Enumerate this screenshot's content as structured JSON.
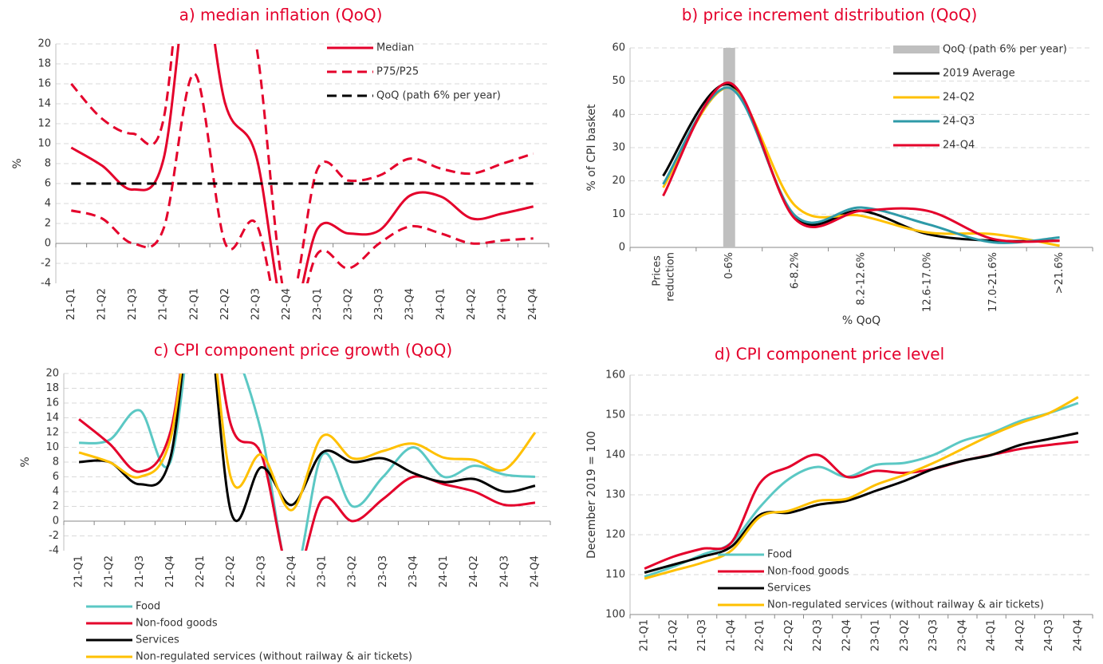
{
  "chart_data": [
    {
      "type": "line",
      "title": "a) median inflation (QoQ)",
      "ylabel": "%",
      "categories": [
        "21-Q1",
        "21-Q2",
        "21-Q3",
        "21-Q4",
        "22-Q1",
        "22-Q2",
        "22-Q3",
        "22-Q4",
        "23-Q1",
        "23-Q2",
        "23-Q3",
        "23-Q4",
        "24-Q1",
        "24-Q2",
        "24-Q3",
        "24-Q4"
      ],
      "ylim": [
        -4,
        20
      ],
      "yticks": [
        -4,
        -2,
        0,
        2,
        4,
        6,
        8,
        10,
        12,
        14,
        16,
        18,
        20
      ],
      "grid": true,
      "legend": "upper right",
      "series": [
        {
          "name": "Median",
          "color": "#e4002b",
          "dash": false,
          "values": [
            9.6,
            7.8,
            5.4,
            8.5,
            30,
            14,
            8.8,
            -8,
            1.5,
            1.0,
            1.3,
            4.8,
            4.7,
            2.5,
            3.0,
            3.7
          ]
        },
        {
          "name": "P75/P25",
          "color": "#e4002b",
          "dash": true,
          "values": [
            16,
            12.5,
            11,
            12.5,
            40,
            30,
            20,
            -6,
            7.5,
            6.3,
            6.8,
            8.5,
            7.5,
            7,
            8,
            9
          ],
          "lower_values": [
            3.3,
            2.5,
            0,
            1.5,
            17,
            0,
            2,
            -10,
            -1,
            -2.5,
            0,
            1.7,
            1,
            0,
            0.3,
            0.5
          ]
        },
        {
          "name": "QoQ (path 6% per year)",
          "color": "#000000",
          "dash": true,
          "values": [
            6,
            6,
            6,
            6,
            6,
            6,
            6,
            6,
            6,
            6,
            6,
            6,
            6,
            6,
            6,
            6
          ]
        }
      ]
    },
    {
      "type": "line",
      "title": "b) price increment distribution (QoQ)",
      "ylabel": "% of CPI basket",
      "xlabel": "% QoQ",
      "categories": [
        "Prices reduction",
        "0-6%",
        "6-8.2%",
        "8.2-12.6%",
        "12.6-17.0%",
        "17.0-21.6%",
        ">21.6%"
      ],
      "ylim": [
        0,
        60
      ],
      "yticks": [
        0,
        10,
        20,
        30,
        40,
        50,
        60
      ],
      "grid": true,
      "legend": "upper right",
      "series": [
        {
          "name": "QoQ (path 6% per year)",
          "color": "#bfbfbf",
          "kind": "bar",
          "values": [
            null,
            60,
            null,
            null,
            null,
            null,
            null
          ]
        },
        {
          "name": "2019 Average",
          "color": "#000000",
          "values": [
            21.5,
            49,
            9,
            11,
            4,
            2,
            2
          ]
        },
        {
          "name": "24-Q2",
          "color": "#ffc000",
          "values": [
            18,
            48,
            12.5,
            9.5,
            4.5,
            4,
            0.5
          ]
        },
        {
          "name": "24-Q3",
          "color": "#2e9aa8",
          "values": [
            19,
            48,
            9.5,
            12,
            7,
            1.5,
            3
          ]
        },
        {
          "name": "24-Q4",
          "color": "#e4002b",
          "values": [
            15.5,
            49.5,
            8.5,
            11,
            11,
            2.5,
            2
          ]
        }
      ]
    },
    {
      "type": "line",
      "title": "c) CPI component price growth (QoQ)",
      "ylabel": "%",
      "categories": [
        "21-Q1",
        "21-Q2",
        "21-Q3",
        "21-Q4",
        "22-Q1",
        "22-Q2",
        "22-Q3",
        "22-Q4",
        "23-Q1",
        "23-Q2",
        "23-Q3",
        "23-Q4",
        "24-Q1",
        "24-Q2",
        "24-Q3",
        "24-Q4"
      ],
      "ylim": [
        -4,
        20
      ],
      "yticks": [
        -4,
        -2,
        0,
        2,
        4,
        6,
        8,
        10,
        12,
        14,
        16,
        18,
        20
      ],
      "grid": true,
      "legend": "below",
      "series": [
        {
          "name": "Food",
          "color": "#5bc8c4",
          "values": [
            10.6,
            11,
            15,
            8,
            35,
            25,
            12,
            -8,
            9,
            2,
            6,
            10,
            6,
            7.5,
            6.3,
            6
          ]
        },
        {
          "name": "Non-food goods",
          "color": "#e4002b",
          "values": [
            13.8,
            10.5,
            6.7,
            12,
            35,
            13,
            9,
            -8,
            3,
            0,
            3,
            6,
            5,
            4,
            2.2,
            2.5
          ]
        },
        {
          "name": "Services",
          "color": "#000000",
          "values": [
            8,
            8,
            5,
            8.5,
            35,
            1.2,
            7.3,
            2.2,
            9.3,
            8,
            8.5,
            6.5,
            5.3,
            5.7,
            4,
            4.8
          ]
        },
        {
          "name": "Non-regulated services (without railway & air tickets)",
          "color": "#ffc000",
          "values": [
            9.3,
            8,
            6,
            11,
            35,
            5.8,
            9,
            1.5,
            11.5,
            8.5,
            9.5,
            10.5,
            8.6,
            8.3,
            7,
            12
          ]
        }
      ]
    },
    {
      "type": "line",
      "title": "d) CPI component price level",
      "ylabel": "December 2019 = 100",
      "categories": [
        "21-Q1",
        "21-Q2",
        "21-Q3",
        "21-Q4",
        "22-Q1",
        "22-Q2",
        "22-Q3",
        "22-Q4",
        "23-Q1",
        "23-Q2",
        "23-Q3",
        "23-Q4",
        "24-Q1",
        "24-Q2",
        "24-Q3",
        "24-Q4"
      ],
      "ylim": [
        100,
        160
      ],
      "yticks": [
        100,
        110,
        120,
        130,
        140,
        150,
        160
      ],
      "grid": true,
      "legend": "lower left",
      "series": [
        {
          "name": "Food",
          "color": "#5bc8c4",
          "values": [
            109.5,
            112,
            115,
            118,
            127,
            134,
            137,
            134.5,
            137.5,
            138,
            140,
            143.5,
            145.5,
            148.5,
            150.5,
            153
          ]
        },
        {
          "name": "Non-food goods",
          "color": "#e4002b",
          "values": [
            111.5,
            114.5,
            116.5,
            118,
            133,
            137,
            140,
            134.5,
            136,
            135.5,
            136.5,
            138.5,
            140,
            141.5,
            142.5,
            143.3
          ]
        },
        {
          "name": "Services",
          "color": "#000000",
          "values": [
            110.5,
            112.5,
            114.5,
            117,
            125,
            125.5,
            127.5,
            128.5,
            131,
            133.5,
            136.5,
            138.5,
            140,
            142.5,
            144,
            145.5
          ]
        },
        {
          "name": "Non-regulated services (without railway & air tickets)",
          "color": "#ffc000",
          "values": [
            109,
            111,
            113,
            116,
            124.5,
            126,
            128.5,
            129,
            132.5,
            135,
            138,
            141.5,
            145,
            148,
            150.5,
            154.5
          ]
        }
      ]
    }
  ]
}
